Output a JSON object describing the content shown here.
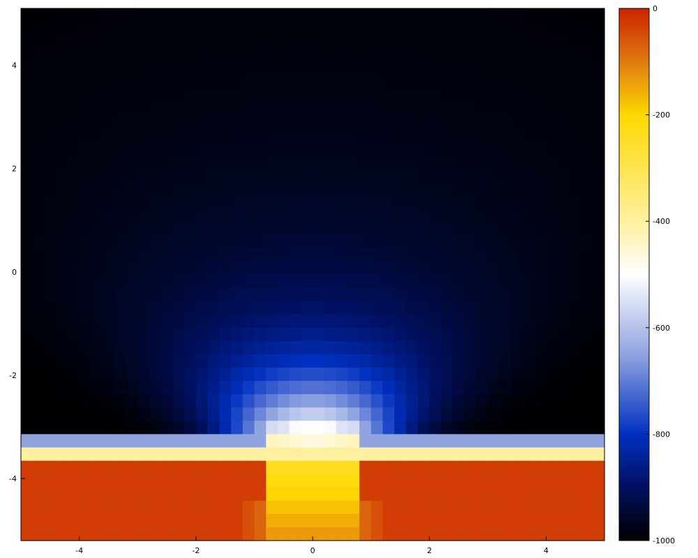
{
  "chart_data": {
    "type": "heatmap",
    "title": "",
    "xlabel": "",
    "ylabel": "",
    "xlim": [
      -5,
      5
    ],
    "ylim": [
      -5.2,
      5.1
    ],
    "x_ticks": [
      -4,
      -2,
      0,
      2,
      4
    ],
    "y_ticks": [
      -4,
      -2,
      0,
      2,
      4
    ],
    "colorbar": {
      "range": [
        -1000,
        0
      ],
      "ticks": [
        0,
        -200,
        -400,
        -600,
        -800,
        -1000
      ],
      "stops": [
        {
          "value": -1000,
          "color": "#000000"
        },
        {
          "value": -900,
          "color": "#001060"
        },
        {
          "value": -800,
          "color": "#0030c0"
        },
        {
          "value": -650,
          "color": "#90a4e0"
        },
        {
          "value": -500,
          "color": "#ffffff"
        },
        {
          "value": -400,
          "color": "#fff0a0"
        },
        {
          "value": -200,
          "color": "#ffd800"
        },
        {
          "value": -100,
          "color": "#e07a10"
        },
        {
          "value": 0,
          "color": "#cc2200"
        }
      ]
    },
    "grid": false
  }
}
